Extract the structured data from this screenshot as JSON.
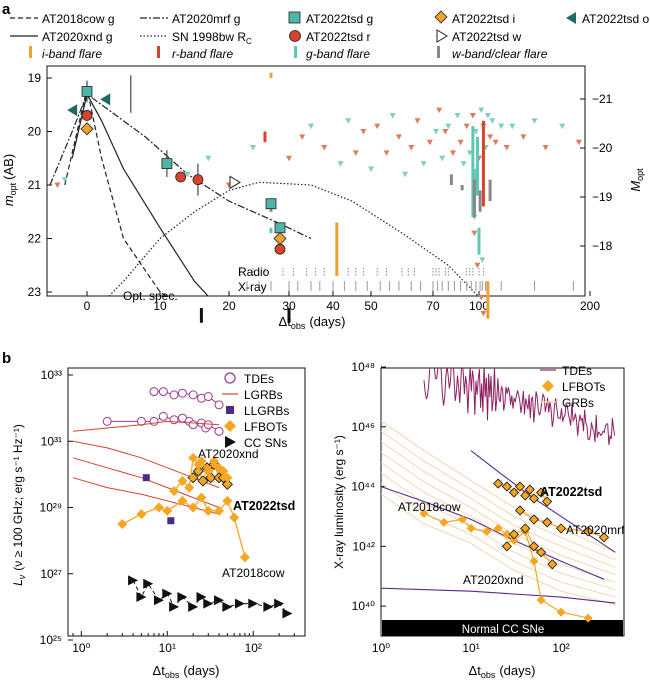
{
  "panel_labels": {
    "a": "a",
    "b": "b"
  },
  "panel_a": {
    "legend": [
      {
        "label": "AT2018cow g",
        "style": "dash",
        "color": "#222222"
      },
      {
        "label": "AT2020mrf g",
        "style": "dashdot",
        "color": "#222222"
      },
      {
        "label": "AT2022tsd g",
        "style": "square",
        "color": "#4fb5a6"
      },
      {
        "label": "AT2022tsd i",
        "style": "diamond",
        "color": "#f0a030"
      },
      {
        "label": "AT2022tsd o",
        "style": "triangle-left",
        "color": "#1d6b63"
      },
      {
        "label": "AT2020xnd g",
        "style": "solid",
        "color": "#222222"
      },
      {
        "label": "SN 1998bw R",
        "style": "dot",
        "color": "#222222",
        "subscript": "C"
      },
      {
        "label": "AT2022tsd r",
        "style": "circle",
        "color": "#d8432b"
      },
      {
        "label": "AT2022tsd w",
        "style": "triangle-right",
        "color": "#ffffff"
      },
      {
        "label": "i-band flare",
        "style": "bar",
        "color": "#f0a030"
      },
      {
        "label": "r-band flare",
        "style": "bar",
        "color": "#d8432b"
      },
      {
        "label": "g-band flare",
        "style": "bar",
        "color": "#5cc8b3"
      },
      {
        "label": "w-band/clear flare",
        "style": "bar",
        "color": "#888888"
      }
    ],
    "ylabel_left": "m",
    "ylabel_left_sub": "opt",
    "ylabel_left_unit": "(AB)",
    "ylabel_right": "M",
    "ylabel_right_sub": "opt",
    "xlabel": "Δt",
    "xlabel_sub": "obs",
    "xlabel_unit": "(days)",
    "annotations": {
      "radio": "Radio",
      "xray": "X-ray",
      "optspec": "Opt. spec."
    }
  },
  "panel_b_left": {
    "ylabel": "L",
    "ylabel_sub": "ν",
    "ylabel_rest": "(ν ≥ 100 GHz; erg s⁻¹ Hz⁻¹)",
    "xlabel": "Δt",
    "xlabel_sub": "obs",
    "xlabel_unit": "(days)",
    "legend": [
      {
        "label": "TDEs",
        "style": "open-circle",
        "color": "#9b3a8c"
      },
      {
        "label": "LGRBs",
        "style": "line",
        "color": "#d8432b"
      },
      {
        "label": "LLGRBs",
        "style": "square",
        "color": "#4b2a8a"
      },
      {
        "label": "LFBOTs",
        "style": "diamond",
        "color": "#f5a623"
      },
      {
        "label": "CC SNs",
        "style": "triangle-right",
        "color": "#111111"
      }
    ],
    "annotations": {
      "at2020xnd": "AT2020xnd",
      "at2022tsd": "AT2022tsd",
      "at2018cow": "AT2018cow"
    }
  },
  "panel_b_right": {
    "ylabel": "X-ray luminosity (erg s⁻¹)",
    "xlabel": "Δt",
    "xlabel_sub": "obs",
    "xlabel_unit": "(days)",
    "legend": [
      {
        "label": "TDEs",
        "style": "line",
        "color": "#8e1f62"
      },
      {
        "label": "LFBOTs",
        "style": "diamond",
        "color": "#f5a623"
      },
      {
        "label": "GRBs",
        "style": "line",
        "color": "#f5d5b0"
      }
    ],
    "annotations": {
      "at2018cow": "AT2018cow",
      "at2022tsd": "AT2022tsd",
      "at2020mrf": "AT2020mrf",
      "at2020xnd": "AT2020xnd",
      "normal": "Normal CC SNe"
    }
  },
  "chart_data": [
    {
      "type": "scatter",
      "title": "a",
      "xlabel": "Δt_obs (days)",
      "ylabel": "m_opt (AB)",
      "ylabel_right": "M_opt",
      "xlim": [
        -5,
        210
      ],
      "ylim": [
        23.5,
        18.8
      ],
      "x_scale": "asinh-like",
      "x_ticks": [
        0,
        10,
        20,
        30,
        40,
        50,
        70,
        100,
        200
      ],
      "x_tick_labels": [
        "0",
        "10",
        "20",
        "30",
        "40",
        "50",
        "70",
        "100",
        "200"
      ],
      "y_ticks": [
        19,
        20,
        21,
        22,
        23
      ],
      "y_tick_labels": [
        "19",
        "20",
        "21",
        "22",
        "23"
      ],
      "y_ticks_right": [
        -21,
        -20,
        -19,
        -18
      ],
      "y_tick_labels_right": [
        "−21",
        "−20",
        "−19",
        "−18"
      ],
      "series": [
        {
          "name": "AT2022tsd g",
          "marker": "square",
          "x": [
            0,
            11,
            27,
            28.5
          ],
          "y": [
            19.25,
            20.6,
            21.35,
            21.8
          ]
        },
        {
          "name": "AT2022tsd r",
          "marker": "circle",
          "x": [
            0,
            13,
            15.5,
            28.5
          ],
          "y": [
            19.7,
            20.85,
            20.9,
            22.2
          ]
        },
        {
          "name": "AT2022tsd i",
          "marker": "diamond",
          "x": [
            0,
            28.5
          ],
          "y": [
            19.95,
            22.0
          ]
        },
        {
          "name": "AT2022tsd o",
          "marker": "triangle-left",
          "x": [
            -2,
            2.5
          ],
          "y": [
            19.6,
            19.4
          ]
        },
        {
          "name": "AT2022tsd w",
          "marker": "triangle-right",
          "x": [
            21
          ],
          "y": [
            20.95
          ]
        }
      ],
      "model_curves": [
        {
          "name": "AT2018cow g",
          "style": "dash",
          "x": [
            -3,
            -1,
            0,
            2,
            5,
            10,
            16
          ],
          "y": [
            21,
            19.8,
            19.2,
            20.5,
            22,
            23,
            23.5
          ]
        },
        {
          "name": "AT2020mrf g",
          "style": "dashdot",
          "x": [
            -5,
            -2,
            0,
            3,
            8,
            14,
            20,
            28,
            35
          ],
          "y": [
            21,
            20,
            19.3,
            19.6,
            20.1,
            20.8,
            21.3,
            21.7,
            22
          ]
        },
        {
          "name": "AT2020xnd g",
          "style": "solid",
          "x": [
            -2,
            0,
            2,
            5,
            10,
            15,
            20
          ],
          "y": [
            20.5,
            19.3,
            19.8,
            20.7,
            21.8,
            22.8,
            23.5
          ]
        },
        {
          "name": "SN 1998bw R_C",
          "style": "dot",
          "x": [
            0,
            5,
            10,
            15,
            20,
            25,
            35,
            45,
            60,
            80,
            105
          ],
          "y": [
            23.5,
            22.8,
            22,
            21.5,
            21.1,
            20.95,
            21,
            21.3,
            21.9,
            22.5,
            23.2
          ]
        }
      ],
      "upper_limits": {
        "note": "many triangle upper limits (g teal, r red) between 19.5 and 21.2 mag after day 30; dense cluster near days 95–110"
      },
      "flares": [
        {
          "band": "i",
          "x": [
            27,
            41,
            108
          ],
          "y_ranges": [
            [
              18.9,
              19.0
            ],
            [
              21.7,
              22.7
            ],
            [
              22.8,
              23.5
            ]
          ]
        },
        {
          "band": "r",
          "x": [
            26,
            104
          ],
          "y_ranges": [
            [
              20.0,
              20.2
            ],
            [
              19.8,
              21.4
            ]
          ]
        },
        {
          "band": "g",
          "x": [
            27,
            96,
            97,
            99,
            100
          ],
          "y_ranges": [
            [
              21.8,
              21.9
            ],
            [
              19.9,
              21.6
            ],
            [
              20.7,
              21.4
            ],
            [
              20.1,
              21.2
            ],
            [
              21.8,
              22.3
            ]
          ]
        },
        {
          "band": "w/clear",
          "x": [
            27,
            82,
            89,
            97,
            101,
            110
          ],
          "y_ranges": [
            [
              21.3,
              21.5
            ],
            [
              20.8,
              21.0
            ],
            [
              21.0,
              21.1
            ],
            [
              20.9,
              21.6
            ],
            [
              21.1,
              21.5
            ],
            [
              20.9,
              21.3
            ]
          ]
        }
      ]
    },
    {
      "type": "line",
      "title": "b (left)",
      "xlabel": "Δt_obs (days)",
      "ylabel": "L_ν (ν ≥ 100 GHz; erg s⁻¹ Hz⁻¹)",
      "x_scale": "log",
      "y_scale": "log",
      "xlim": [
        0.7,
        400
      ],
      "ylim_log10": [
        25,
        33
      ],
      "x_ticks": [
        1,
        10,
        100
      ],
      "x_tick_labels": [
        "10⁰",
        "10¹",
        "10²"
      ],
      "y_ticks_log10": [
        25,
        27,
        29,
        31,
        33
      ],
      "y_tick_labels": [
        "10²⁵",
        "10²⁷",
        "10²⁹",
        "10³¹",
        "10³³"
      ],
      "series": [
        {
          "name": "TDE (upper)",
          "x": [
            7,
            9,
            12,
            15,
            20,
            25,
            30,
            40
          ],
          "log10_y": [
            32.5,
            32.5,
            32.4,
            32.45,
            32.4,
            32.3,
            32.35,
            32.1
          ]
        },
        {
          "name": "TDE (lower)",
          "x": [
            2,
            5,
            7,
            9,
            12,
            15,
            18,
            20,
            25,
            28,
            30,
            40
          ],
          "log10_y": [
            31.6,
            31.6,
            31.6,
            31.75,
            31.65,
            31.7,
            31.6,
            31.5,
            31.55,
            31.4,
            31.5,
            31.3
          ]
        },
        {
          "name": "LGRB 1",
          "x": [
            0.8,
            2,
            5,
            10,
            20,
            40
          ],
          "log10_y": [
            31.3,
            31.4,
            31.5,
            31.6,
            31.55,
            31.5
          ]
        },
        {
          "name": "LGRB 2",
          "x": [
            0.8,
            2,
            5,
            10,
            20,
            40
          ],
          "log10_y": [
            31.0,
            30.8,
            30.5,
            30.2,
            29.9,
            29.6
          ]
        },
        {
          "name": "LGRB 3",
          "x": [
            0.8,
            2,
            5,
            10,
            20,
            40
          ],
          "log10_y": [
            30.5,
            30.2,
            29.9,
            29.6,
            29.3,
            29.0
          ]
        },
        {
          "name": "LGRB 4",
          "x": [
            0.8,
            2,
            5,
            10,
            20,
            40
          ],
          "log10_y": [
            29.9,
            29.6,
            29.4,
            29.2,
            29.0,
            28.8
          ]
        },
        {
          "name": "LLGRBs",
          "x": [
            5.7,
            11
          ],
          "log10_y": [
            29.9,
            28.6
          ]
        },
        {
          "name": "AT2022tsd",
          "x": [
            20,
            23,
            26,
            29,
            32,
            35,
            40,
            45,
            50
          ],
          "log10_y": [
            29.9,
            30.1,
            29.8,
            30.2,
            29.9,
            30.3,
            29.9,
            29.9,
            29.7
          ]
        },
        {
          "name": "AT2018cow",
          "x": [
            3,
            5,
            8,
            10,
            15,
            20,
            25,
            30,
            40,
            50,
            60,
            80
          ],
          "log10_y": [
            28.5,
            28.8,
            29.0,
            28.9,
            29.2,
            29.0,
            29.3,
            28.9,
            28.9,
            29.2,
            28.7,
            27.5
          ]
        },
        {
          "name": "AT2020xnd",
          "x": [
            12,
            15,
            18,
            20,
            23,
            25,
            30,
            35,
            40,
            45,
            50
          ],
          "log10_y": [
            29.5,
            29.8,
            29.6,
            30.5,
            30.3,
            30.4,
            30.1,
            30.4,
            30.2,
            30.1,
            29.9
          ]
        },
        {
          "name": "CC SNs",
          "x": [
            4,
            5,
            6,
            8,
            10,
            12,
            15,
            20,
            25,
            30,
            40,
            50,
            70,
            100,
            150,
            200,
            250
          ],
          "log10_y": [
            26.8,
            26.3,
            26.7,
            26.2,
            26.4,
            26.0,
            26.3,
            26.0,
            26.3,
            26.1,
            26.2,
            26.0,
            26.1,
            26.1,
            26.0,
            26.1,
            25.8
          ]
        }
      ]
    },
    {
      "type": "line",
      "title": "b (right)",
      "xlabel": "Δt_obs (days)",
      "ylabel": "X-ray luminosity (erg s⁻¹)",
      "x_scale": "log",
      "y_scale": "log",
      "xlim": [
        1,
        500
      ],
      "ylim_log10": [
        39,
        48
      ],
      "x_ticks": [
        1,
        10,
        100
      ],
      "x_tick_labels": [
        "10⁰",
        "10¹",
        "10²"
      ],
      "y_ticks_log10": [
        40,
        42,
        44,
        46,
        48
      ],
      "y_tick_labels": [
        "10⁴⁰",
        "10⁴²",
        "10⁴⁴",
        "10⁴⁶",
        "10⁴⁸"
      ],
      "series": [
        {
          "name": "TDE (swift)",
          "x": [
            3,
            5,
            10,
            20,
            50,
            100,
            200,
            400
          ],
          "log10_y": [
            47.8,
            47.3,
            46.8,
            46.5,
            46.1,
            45.9,
            45.6,
            45.3
          ]
        },
        {
          "name": "TDE (bright)",
          "x": [
            10,
            20,
            50,
            100,
            200,
            400
          ],
          "log10_y": [
            45.2,
            44.5,
            43.6,
            43.0,
            42.4,
            41.8
          ]
        },
        {
          "name": "TDE (mid)",
          "x": [
            1,
            3,
            10,
            30,
            100,
            300
          ],
          "log10_y": [
            44.0,
            43.5,
            42.9,
            42.2,
            41.5,
            40.9
          ]
        },
        {
          "name": "TDE (faint)",
          "x": [
            1,
            10,
            100,
            400
          ],
          "log10_y": [
            40.6,
            40.5,
            40.3,
            40.1
          ]
        },
        {
          "name": "AT2022tsd",
          "x": [
            20,
            25,
            30,
            35,
            40,
            45,
            50,
            60,
            70
          ],
          "log10_y": [
            44.1,
            44.0,
            43.8,
            44.0,
            43.7,
            43.9,
            43.6,
            43.8,
            43.5
          ]
        },
        {
          "name": "AT2018cow",
          "x": [
            3,
            5,
            8,
            10,
            15,
            20,
            25,
            30,
            40,
            50,
            60,
            100,
            200
          ],
          "log10_y": [
            43.1,
            42.8,
            42.9,
            42.6,
            42.5,
            42.6,
            42.4,
            42.2,
            42.5,
            41.5,
            40.2,
            39.8,
            39.6
          ]
        },
        {
          "name": "AT2020mrf",
          "x": [
            35,
            50,
            70,
            100,
            200,
            300
          ],
          "log10_y": [
            43.2,
            42.9,
            42.8,
            42.6,
            42.5,
            42.3
          ]
        },
        {
          "name": "AT2020xnd",
          "x": [
            25,
            30,
            40,
            50,
            60,
            80
          ],
          "log10_y": [
            42.0,
            42.4,
            42.6,
            42.0,
            41.8,
            41.4
          ]
        },
        {
          "name": "GRBs (sample envelope)",
          "x": [
            1,
            10,
            100,
            400
          ],
          "log10_y": [
            46.0,
            44.0,
            42.5,
            41.5
          ]
        }
      ],
      "bands": [
        {
          "name": "Normal CC SNe",
          "log10_y": [
            39,
            39.8
          ]
        }
      ]
    }
  ]
}
